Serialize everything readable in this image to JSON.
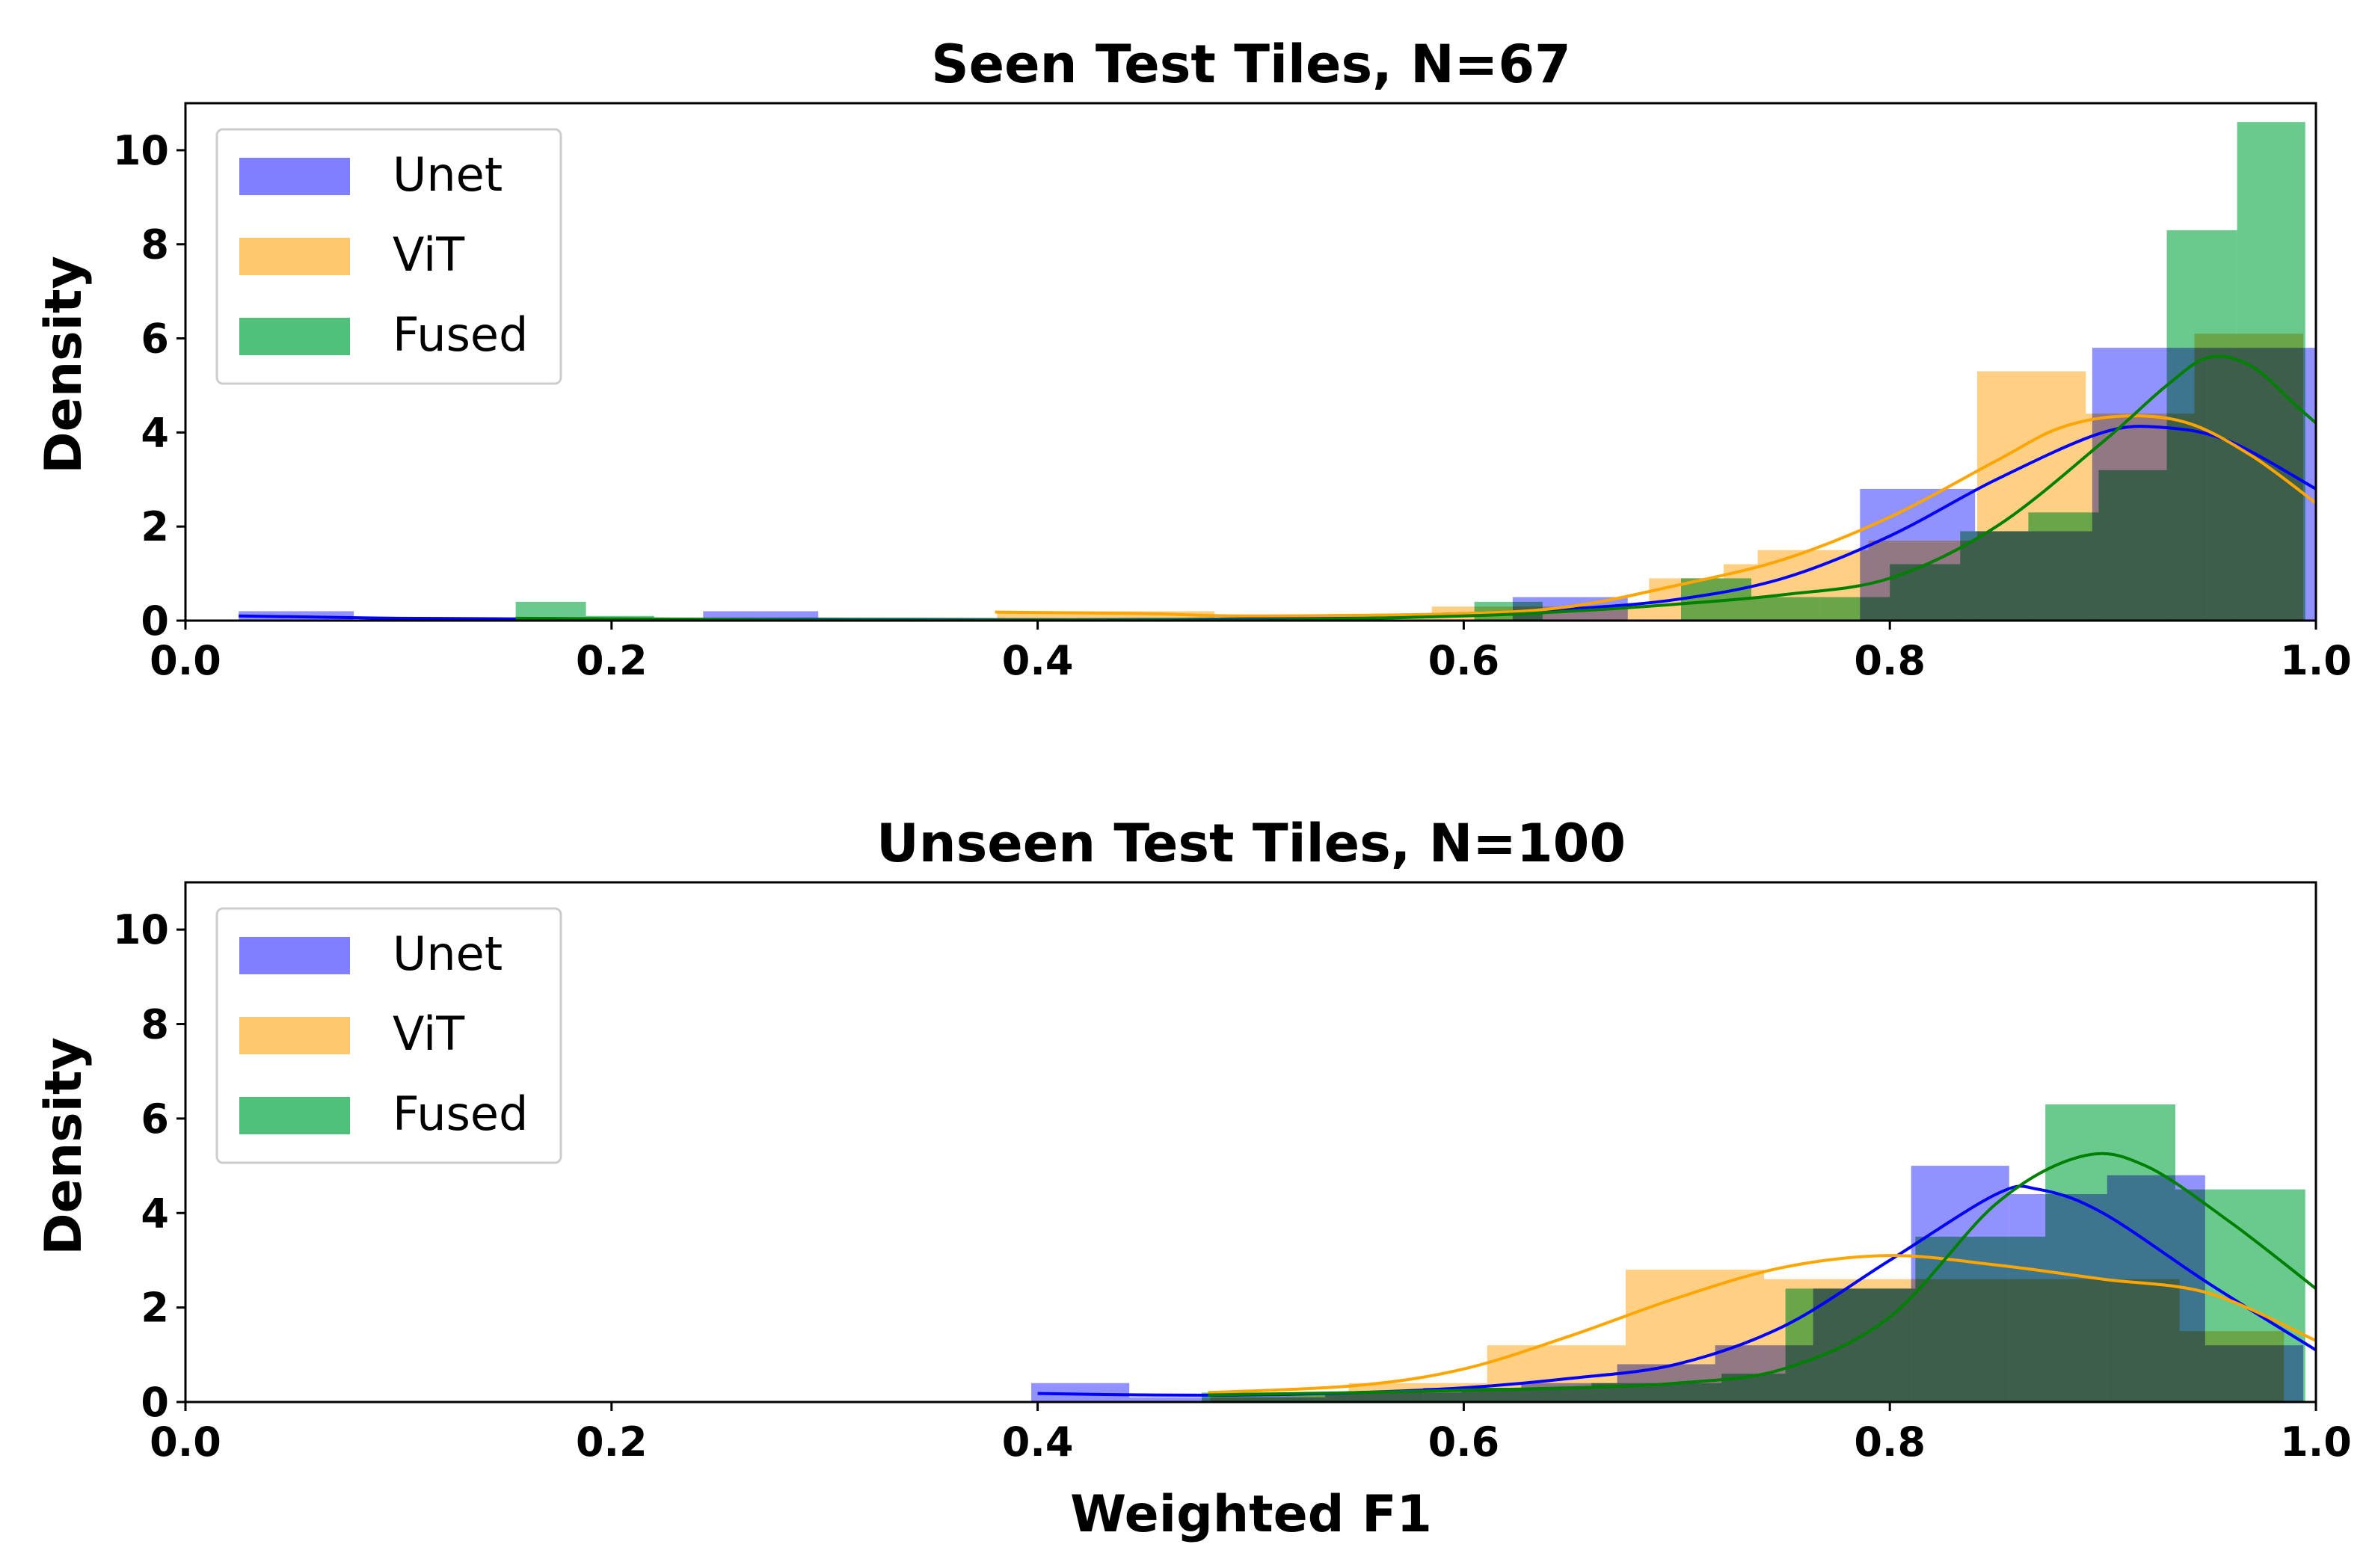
{
  "chart_data": [
    {
      "type": "histogram",
      "title": "Seen Test Tiles, N=67",
      "xlabel": "",
      "ylabel": "Density",
      "xlim": [
        0.0,
        1.0
      ],
      "ylim": [
        0,
        11
      ],
      "xticks": [
        "0.0",
        "0.2",
        "0.4",
        "0.6",
        "0.8",
        "1.0"
      ],
      "yticks": [
        "0",
        "2",
        "4",
        "6",
        "8",
        "10"
      ],
      "legend_position": "upper-left",
      "series": [
        {
          "name": "Unet",
          "color": "#7f7fff",
          "line_color": "#0000ff",
          "bins": [
            [
              0.025,
              0.079,
              0.2
            ],
            [
              0.243,
              0.297,
              0.2
            ],
            [
              0.623,
              0.677,
              0.5
            ],
            [
              0.786,
              0.84,
              2.8
            ],
            [
              0.84,
              0.895,
              1.9
            ],
            [
              0.895,
              0.949,
              5.8
            ],
            [
              0.949,
              1.0,
              5.8
            ]
          ],
          "kde": [
            [
              0.025,
              0.1
            ],
            [
              0.1,
              0.05
            ],
            [
              0.2,
              0.03
            ],
            [
              0.3,
              0.03
            ],
            [
              0.4,
              0.02
            ],
            [
              0.5,
              0.04
            ],
            [
              0.6,
              0.15
            ],
            [
              0.65,
              0.25
            ],
            [
              0.7,
              0.45
            ],
            [
              0.75,
              0.9
            ],
            [
              0.8,
              1.8
            ],
            [
              0.85,
              3.0
            ],
            [
              0.9,
              4.0
            ],
            [
              0.93,
              4.1
            ],
            [
              0.96,
              3.8
            ],
            [
              1.0,
              2.8
            ]
          ]
        },
        {
          "name": "ViT",
          "color": "#ffc86e",
          "line_color": "#ffa500",
          "bins": [
            [
              0.381,
              0.483,
              0.2
            ],
            [
              0.483,
              0.585,
              0.05
            ],
            [
              0.585,
              0.687,
              0.3
            ],
            [
              0.687,
              0.722,
              0.9
            ],
            [
              0.722,
              0.738,
              1.2
            ],
            [
              0.738,
              0.79,
              1.5
            ],
            [
              0.79,
              0.841,
              1.7
            ],
            [
              0.841,
              0.892,
              5.3
            ],
            [
              0.892,
              0.943,
              4.4
            ],
            [
              0.943,
              0.994,
              6.1
            ]
          ],
          "kde": [
            [
              0.38,
              0.18
            ],
            [
              0.45,
              0.15
            ],
            [
              0.5,
              0.1
            ],
            [
              0.6,
              0.15
            ],
            [
              0.65,
              0.3
            ],
            [
              0.7,
              0.75
            ],
            [
              0.75,
              1.3
            ],
            [
              0.8,
              2.2
            ],
            [
              0.85,
              3.4
            ],
            [
              0.88,
              4.1
            ],
            [
              0.91,
              4.35
            ],
            [
              0.94,
              4.2
            ],
            [
              0.97,
              3.5
            ],
            [
              1.0,
              2.5
            ]
          ]
        },
        {
          "name": "Fused",
          "color": "#50c17a",
          "line_color": "#008000",
          "bins": [
            [
              0.155,
              0.188,
              0.4
            ],
            [
              0.188,
              0.22,
              0.1
            ],
            [
              0.605,
              0.637,
              0.4
            ],
            [
              0.702,
              0.735,
              0.9
            ],
            [
              0.735,
              0.767,
              0.5
            ],
            [
              0.767,
              0.8,
              0.5
            ],
            [
              0.8,
              0.833,
              1.2
            ],
            [
              0.833,
              0.865,
              1.9
            ],
            [
              0.865,
              0.898,
              2.3
            ],
            [
              0.898,
              0.93,
              3.2
            ],
            [
              0.93,
              0.963,
              8.3
            ],
            [
              0.963,
              0.995,
              10.6
            ]
          ],
          "kde": [
            [
              0.155,
              0.05
            ],
            [
              0.3,
              0.02
            ],
            [
              0.5,
              0.02
            ],
            [
              0.6,
              0.1
            ],
            [
              0.65,
              0.2
            ],
            [
              0.7,
              0.35
            ],
            [
              0.75,
              0.55
            ],
            [
              0.8,
              0.9
            ],
            [
              0.85,
              2.0
            ],
            [
              0.9,
              3.8
            ],
            [
              0.93,
              5.0
            ],
            [
              0.95,
              5.6
            ],
            [
              0.97,
              5.4
            ],
            [
              0.99,
              4.6
            ],
            [
              1.0,
              4.2
            ]
          ]
        }
      ]
    },
    {
      "type": "histogram",
      "title": "Unseen Test Tiles, N=100",
      "xlabel": "Weighted F1",
      "ylabel": "Density",
      "xlim": [
        0.0,
        1.0
      ],
      "ylim": [
        0,
        11
      ],
      "xticks": [
        "0.0",
        "0.2",
        "0.4",
        "0.6",
        "0.8",
        "1.0"
      ],
      "yticks": [
        "0",
        "2",
        "4",
        "6",
        "8",
        "10"
      ],
      "legend_position": "upper-left",
      "series": [
        {
          "name": "Unet",
          "color": "#7f7fff",
          "line_color": "#0000ff",
          "bins": [
            [
              0.397,
              0.443,
              0.4
            ],
            [
              0.443,
              0.489,
              0.1
            ],
            [
              0.489,
              0.535,
              0.1
            ],
            [
              0.535,
              0.581,
              0.2
            ],
            [
              0.581,
              0.627,
              0.3
            ],
            [
              0.627,
              0.672,
              0.4
            ],
            [
              0.672,
              0.718,
              0.8
            ],
            [
              0.718,
              0.764,
              1.2
            ],
            [
              0.764,
              0.81,
              2.4
            ],
            [
              0.81,
              0.856,
              5.0
            ],
            [
              0.856,
              0.902,
              4.4
            ],
            [
              0.902,
              0.948,
              4.8
            ],
            [
              0.948,
              0.994,
              1.2
            ]
          ],
          "kde": [
            [
              0.4,
              0.18
            ],
            [
              0.45,
              0.15
            ],
            [
              0.5,
              0.15
            ],
            [
              0.55,
              0.2
            ],
            [
              0.6,
              0.3
            ],
            [
              0.65,
              0.5
            ],
            [
              0.7,
              0.8
            ],
            [
              0.75,
              1.6
            ],
            [
              0.8,
              3.0
            ],
            [
              0.85,
              4.4
            ],
            [
              0.87,
              4.5
            ],
            [
              0.9,
              4.0
            ],
            [
              0.95,
              2.5
            ],
            [
              1.0,
              1.1
            ]
          ]
        },
        {
          "name": "ViT",
          "color": "#ffc86e",
          "line_color": "#ffa500",
          "bins": [
            [
              0.481,
              0.546,
              0.2
            ],
            [
              0.546,
              0.611,
              0.4
            ],
            [
              0.611,
              0.676,
              1.2
            ],
            [
              0.676,
              0.741,
              2.8
            ],
            [
              0.741,
              0.806,
              2.6
            ],
            [
              0.806,
              0.871,
              2.6
            ],
            [
              0.871,
              0.936,
              2.6
            ],
            [
              0.936,
              0.985,
              1.5
            ]
          ],
          "kde": [
            [
              0.48,
              0.2
            ],
            [
              0.55,
              0.35
            ],
            [
              0.6,
              0.7
            ],
            [
              0.65,
              1.4
            ],
            [
              0.7,
              2.2
            ],
            [
              0.75,
              2.85
            ],
            [
              0.8,
              3.1
            ],
            [
              0.85,
              2.9
            ],
            [
              0.9,
              2.6
            ],
            [
              0.95,
              2.3
            ],
            [
              1.0,
              1.3
            ]
          ]
        },
        {
          "name": "Fused",
          "color": "#50c17a",
          "line_color": "#008000",
          "bins": [
            [
              0.477,
              0.538,
              0.2
            ],
            [
              0.538,
              0.599,
              0.2
            ],
            [
              0.599,
              0.66,
              0.3
            ],
            [
              0.66,
              0.721,
              0.4
            ],
            [
              0.721,
              0.751,
              0.6
            ],
            [
              0.751,
              0.812,
              2.4
            ],
            [
              0.812,
              0.873,
              3.5
            ],
            [
              0.873,
              0.934,
              6.3
            ],
            [
              0.934,
              0.995,
              4.5
            ]
          ],
          "kde": [
            [
              0.48,
              0.15
            ],
            [
              0.55,
              0.2
            ],
            [
              0.6,
              0.25
            ],
            [
              0.65,
              0.3
            ],
            [
              0.7,
              0.4
            ],
            [
              0.75,
              0.7
            ],
            [
              0.8,
              1.8
            ],
            [
              0.85,
              4.2
            ],
            [
              0.89,
              5.2
            ],
            [
              0.92,
              5.0
            ],
            [
              0.96,
              3.8
            ],
            [
              1.0,
              2.4
            ]
          ]
        }
      ]
    }
  ]
}
